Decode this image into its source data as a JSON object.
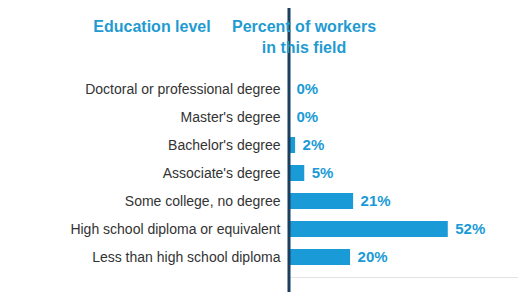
{
  "chart_data": {
    "type": "bar",
    "orientation": "horizontal",
    "ylabel": "Education level",
    "xlabel": "Percent of workers in this field",
    "categories": [
      "Doctoral or professional degree",
      "Master's degree",
      "Bachelor's degree",
      "Associate's degree",
      "Some college, no degree",
      "High school diploma or equivalent",
      "Less than high school diploma"
    ],
    "values": [
      0,
      0,
      2,
      5,
      21,
      52,
      20
    ],
    "value_labels": [
      "0%",
      "0%",
      "2%",
      "5%",
      "21%",
      "52%",
      "20%"
    ],
    "color": "#1a9bd7",
    "xlim": [
      0,
      75
    ],
    "xticks": [],
    "data_labels": true,
    "tick_labels": "y",
    "grid": false
  }
}
